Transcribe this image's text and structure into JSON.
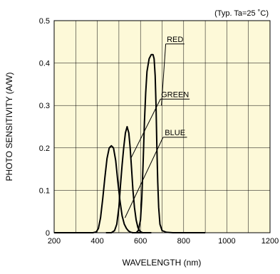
{
  "chart_data": {
    "type": "line",
    "note_text": "(Typ. Ta=25 ˚C)",
    "xlabel": "WAVELENGTH (nm)",
    "ylabel": "PHOTO SENSITIVITY (A/W)",
    "xlim": [
      200,
      1200
    ],
    "ylim": [
      0,
      0.5
    ],
    "xticks": [
      200,
      400,
      600,
      800,
      1000,
      1200
    ],
    "yticks": [
      0,
      0.1,
      0.2,
      0.3,
      0.4,
      0.5
    ],
    "xtick_labels": [
      "200",
      "400",
      "600",
      "800",
      "1000",
      "1200"
    ],
    "ytick_labels": [
      "0",
      "0.1",
      "0.2",
      "0.3",
      "0.4",
      "0.5"
    ],
    "grid": true,
    "plot_background": "#fdf9d8",
    "line_color": "#000000",
    "series": [
      {
        "name": "BLUE",
        "x": [
          200,
          380,
          395,
          405,
          415,
          425,
          435,
          445,
          455,
          465,
          475,
          485,
          495,
          505,
          515,
          525,
          535,
          545,
          555,
          565,
          575,
          590,
          650
        ],
        "y": [
          0,
          0,
          0.002,
          0.01,
          0.035,
          0.08,
          0.13,
          0.175,
          0.2,
          0.205,
          0.2,
          0.17,
          0.12,
          0.075,
          0.04,
          0.02,
          0.01,
          0.004,
          0.001,
          0,
          0,
          0,
          0
        ]
      },
      {
        "name": "GREEN",
        "x": [
          440,
          465,
          480,
          490,
          500,
          507,
          515,
          522,
          530,
          538,
          546,
          552,
          558,
          565,
          572,
          580,
          588,
          598,
          610,
          650
        ],
        "y": [
          0,
          0,
          0.005,
          0.02,
          0.06,
          0.11,
          0.16,
          0.2,
          0.235,
          0.25,
          0.235,
          0.2,
          0.155,
          0.1,
          0.06,
          0.03,
          0.012,
          0.003,
          0,
          0
        ]
      },
      {
        "name": "RED",
        "x": [
          560,
          580,
          590,
          600,
          606,
          612,
          618,
          624,
          630,
          640,
          650,
          658,
          663,
          668,
          672,
          676,
          680,
          684,
          690,
          700,
          720,
          750,
          800,
          900
        ],
        "y": [
          0,
          0,
          0.005,
          0.03,
          0.08,
          0.16,
          0.26,
          0.33,
          0.38,
          0.41,
          0.42,
          0.42,
          0.41,
          0.37,
          0.3,
          0.2,
          0.12,
          0.06,
          0.02,
          0.005,
          0.001,
          0,
          0,
          0
        ]
      }
    ],
    "annotations": [
      {
        "text": "RED",
        "series": "RED",
        "at_x": 697,
        "at_y": 0.3,
        "label_x": 760,
        "label_y": 0.445
      },
      {
        "text": "GREEN",
        "series": "GREEN",
        "at_x": 555,
        "at_y": 0.175,
        "label_x": 760,
        "label_y": 0.315
      },
      {
        "text": "BLUE",
        "series": "BLUE",
        "at_x": 528,
        "at_y": 0.035,
        "label_x": 760,
        "label_y": 0.225
      }
    ]
  }
}
